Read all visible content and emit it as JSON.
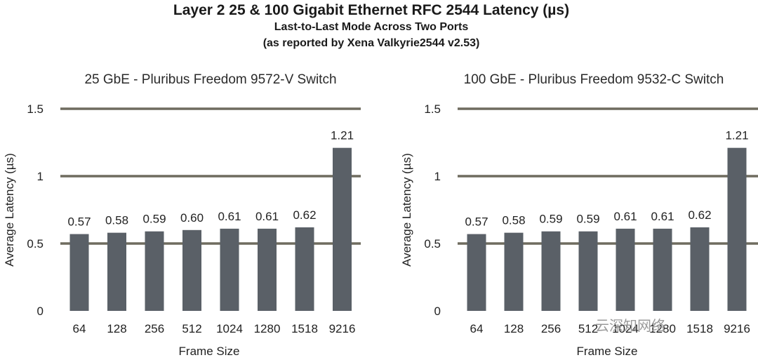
{
  "title": "Layer 2 25 & 100 Gigabit Ethernet RFC 2544 Latency (µs)",
  "subtitle_line1": "Last-to-Last Mode Across Two Ports",
  "subtitle_line2": "(as reported by Xena Valkyrie2544  v2.53)",
  "watermark": "云深知网络",
  "colors": {
    "bar": "#5a6067",
    "grid": "#6f6c5f"
  },
  "chart_data": [
    {
      "type": "bar",
      "title": "25 GbE - Pluribus Freedom 9572-V Switch",
      "xlabel": "Frame Size",
      "ylabel": "Average Latency (µs)",
      "ylim": [
        0,
        1.5
      ],
      "yticks": [
        0,
        0.5,
        1,
        1.5
      ],
      "ytick_labels": [
        "0",
        "0.5",
        "1",
        "1.5"
      ],
      "categories": [
        "64",
        "128",
        "256",
        "512",
        "1024",
        "1280",
        "1518",
        "9216"
      ],
      "values": [
        0.57,
        0.58,
        0.59,
        0.6,
        0.61,
        0.61,
        0.62,
        1.21
      ],
      "data_labels": [
        "0.57",
        "0.58",
        "0.59",
        "0.60",
        "0.61",
        "0.61",
        "0.62",
        "1.21"
      ],
      "grid": true,
      "legend": "none"
    },
    {
      "type": "bar",
      "title": "100 GbE - Pluribus Freedom 9532-C Switch",
      "xlabel": "Frame Size",
      "ylabel": "Average Latency (µs)",
      "ylim": [
        0,
        1.5
      ],
      "yticks": [
        0,
        0.5,
        1,
        1.5
      ],
      "ytick_labels": [
        "0",
        "0.5",
        "1",
        "1.5"
      ],
      "categories": [
        "64",
        "128",
        "256",
        "512",
        "1024",
        "1280",
        "1518",
        "9216"
      ],
      "values": [
        0.57,
        0.58,
        0.59,
        0.59,
        0.61,
        0.61,
        0.62,
        1.21
      ],
      "data_labels": [
        "0.57",
        "0.58",
        "0.59",
        "0.59",
        "0.61",
        "0.61",
        "0.62",
        "1.21"
      ],
      "grid": true,
      "legend": "none"
    }
  ]
}
